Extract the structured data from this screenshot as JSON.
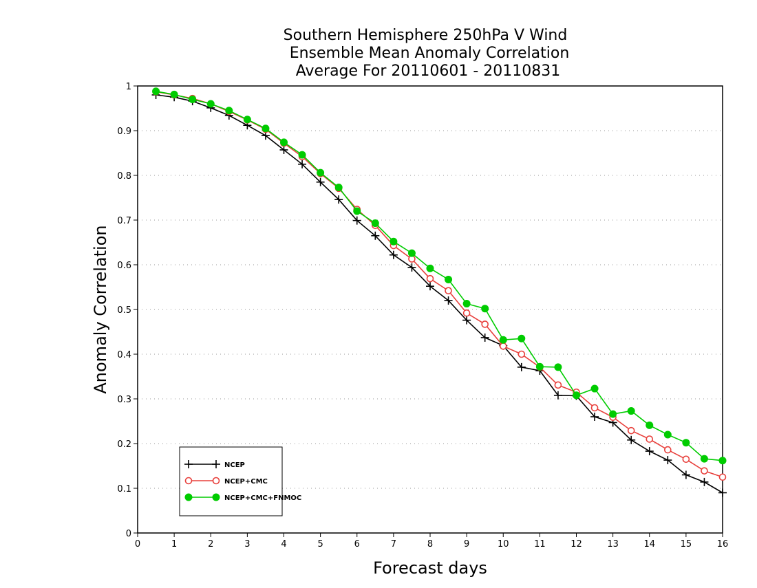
{
  "title_lines": [
    "Southern Hemisphere 250hPa V Wind",
    "Ensemble Mean Anomaly Correlation",
    "Average For 20110601 - 20110831"
  ],
  "chart_data": {
    "type": "line",
    "title": "Southern Hemisphere 250hPa V Wind\nEnsemble Mean Anomaly Correlation\nAverage For 20110601 - 20110831",
    "xlabel": "Forecast days",
    "ylabel": "Anomaly Correlation",
    "xlim": [
      0,
      16
    ],
    "ylim": [
      0,
      1
    ],
    "xticks": [
      "0",
      "1",
      "2",
      "3",
      "4",
      "5",
      "6",
      "7",
      "8",
      "9",
      "10",
      "11",
      "12",
      "13",
      "14",
      "15",
      "16"
    ],
    "yticks": [
      "0",
      "0.1",
      "0.2",
      "0.3",
      "0.4",
      "0.5",
      "0.6",
      "0.7",
      "0.8",
      "0.9",
      "1"
    ],
    "grid": "horizontal dotted",
    "legend_position": "bottom-left",
    "x": [
      0.5,
      1,
      1.5,
      2,
      2.5,
      3,
      3.5,
      4,
      4.5,
      5,
      5.5,
      6,
      6.5,
      7,
      7.5,
      8,
      8.5,
      9,
      9.5,
      10,
      10.5,
      11,
      11.5,
      12,
      12.5,
      13,
      13.5,
      14,
      14.5,
      15,
      15.5,
      16
    ],
    "series": [
      {
        "name": "NCEP",
        "color": "#000000",
        "marker": "plus",
        "values": [
          0.98,
          0.975,
          0.966,
          0.951,
          0.934,
          0.912,
          0.889,
          0.857,
          0.825,
          0.785,
          0.746,
          0.699,
          0.665,
          0.622,
          0.594,
          0.552,
          0.52,
          0.476,
          0.437,
          0.419,
          0.371,
          0.363,
          0.308,
          0.307,
          0.26,
          0.247,
          0.208,
          0.183,
          0.163,
          0.13,
          0.114,
          0.09
        ]
      },
      {
        "name": "NCEP+CMC",
        "color": "#e8403c",
        "marker": "open-circle",
        "values": [
          0.987,
          0.98,
          0.972,
          0.96,
          0.943,
          0.924,
          0.903,
          0.872,
          0.842,
          0.804,
          0.771,
          0.724,
          0.688,
          0.643,
          0.613,
          0.569,
          0.542,
          0.492,
          0.467,
          0.418,
          0.4,
          0.371,
          0.331,
          0.315,
          0.28,
          0.259,
          0.229,
          0.21,
          0.186,
          0.165,
          0.139,
          0.125
        ]
      },
      {
        "name": "NCEP+CMC+FNMOC",
        "color": "#00cc00",
        "marker": "filled-circle",
        "values": [
          0.988,
          0.981,
          0.97,
          0.96,
          0.945,
          0.925,
          0.905,
          0.874,
          0.846,
          0.806,
          0.773,
          0.72,
          0.693,
          0.652,
          0.626,
          0.592,
          0.567,
          0.513,
          0.502,
          0.432,
          0.435,
          0.372,
          0.371,
          0.308,
          0.323,
          0.266,
          0.273,
          0.241,
          0.22,
          0.202,
          0.166,
          0.162
        ]
      }
    ]
  }
}
